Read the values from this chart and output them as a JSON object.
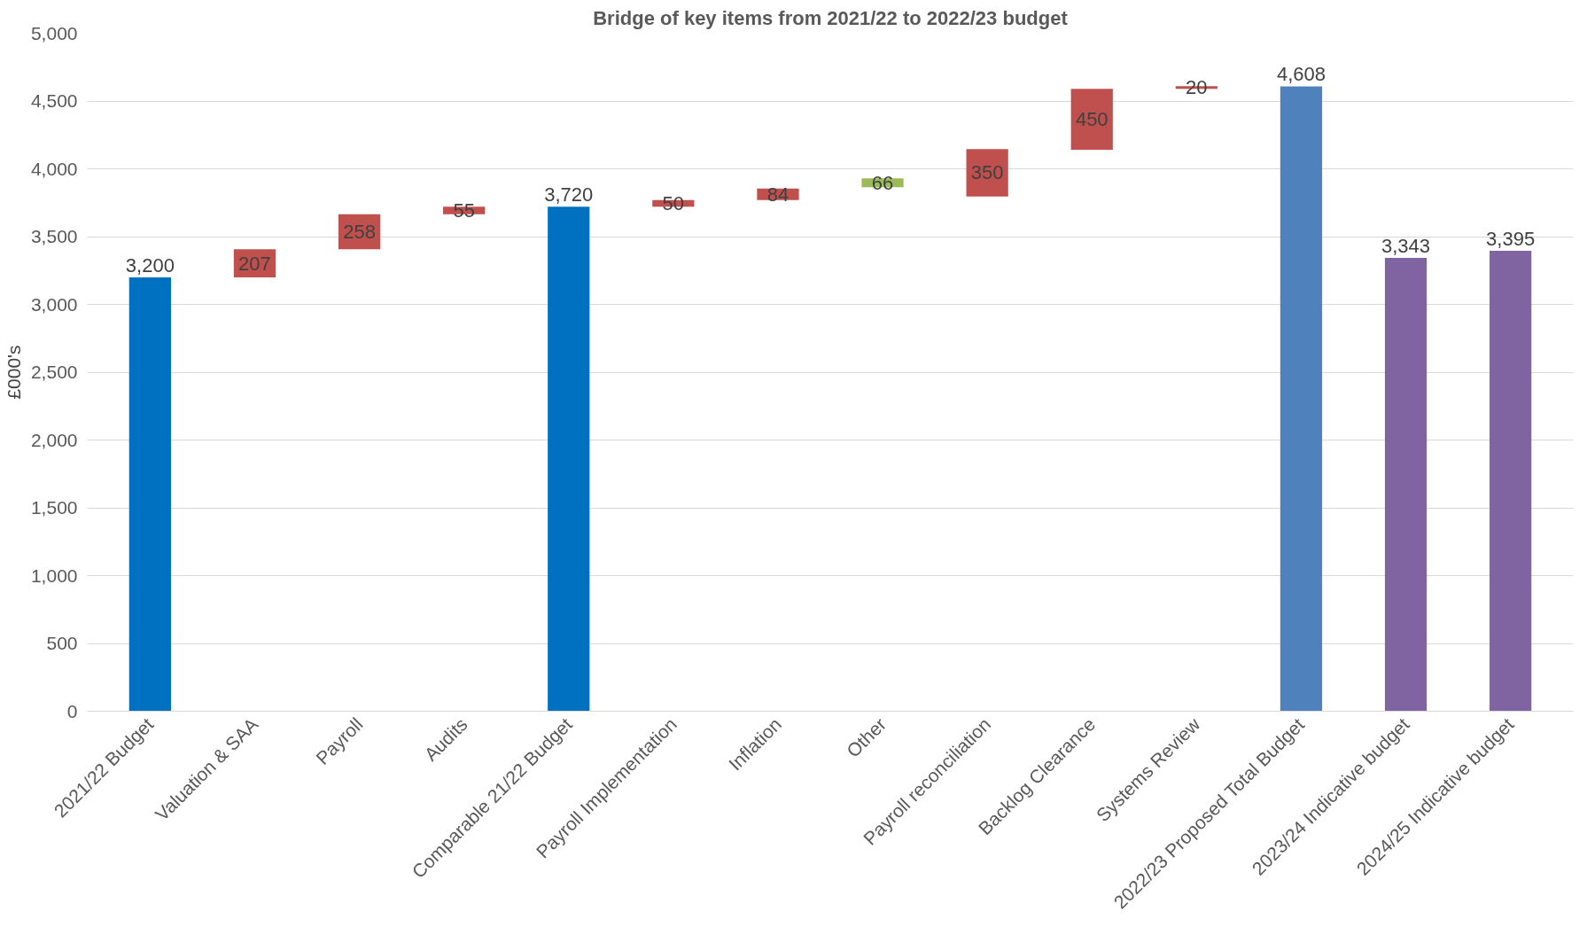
{
  "chart_data": {
    "type": "bar",
    "title": "Bridge of key items from 2021/22 to 2022/23 budget",
    "ylabel": "£000's",
    "categories": [
      "2021/22 Budget",
      "Valuation & SAA",
      "Payroll",
      "Audits",
      "Comparable 21/22 Budget",
      "Payroll Implementation",
      "Inflation",
      "Other",
      "Payroll reconciliation",
      "Backlog Clearance",
      "Systems Review",
      "2022/23 Proposed Total Budget",
      "2023/24 Indicative budget",
      "2024/25 Indicative budget"
    ],
    "values": [
      3200,
      207,
      258,
      55,
      3720,
      50,
      84,
      66,
      350,
      450,
      20,
      4608,
      3343,
      3395
    ],
    "base": [
      0,
      3200,
      3407,
      3665,
      0,
      3720,
      3770,
      3864,
      3796,
      4140,
      4590,
      0,
      0,
      0
    ],
    "colors": [
      "#0070c0",
      "#c0504d",
      "#c0504d",
      "#c0504d",
      "#0070c0",
      "#c0504d",
      "#c0504d",
      "#9bbb59",
      "#c0504d",
      "#c0504d",
      "#c0504d",
      "#4f81bd",
      "#8064a2",
      "#8064a2"
    ],
    "ylim": [
      0,
      5000
    ],
    "yticks": [
      {
        "value": 0,
        "label": "0"
      },
      {
        "value": 500,
        "label": "500"
      },
      {
        "value": 1000,
        "label": "1,000"
      },
      {
        "value": 1500,
        "label": "1,500"
      },
      {
        "value": 2000,
        "label": "2,000"
      },
      {
        "value": 2500,
        "label": "2,500"
      },
      {
        "value": 3000,
        "label": "3,000"
      },
      {
        "value": 3500,
        "label": "3,500"
      },
      {
        "value": 4000,
        "label": "4,000"
      },
      {
        "value": 4500,
        "label": "4,500"
      },
      {
        "value": 5000,
        "label": "5,000"
      }
    ],
    "value_labels": [
      "3,200",
      "207",
      "258",
      "55",
      "3,720",
      "50",
      "84",
      "66",
      "350",
      "450",
      "20",
      "4,608",
      "3,343",
      "3,395"
    ],
    "grid": "y"
  }
}
